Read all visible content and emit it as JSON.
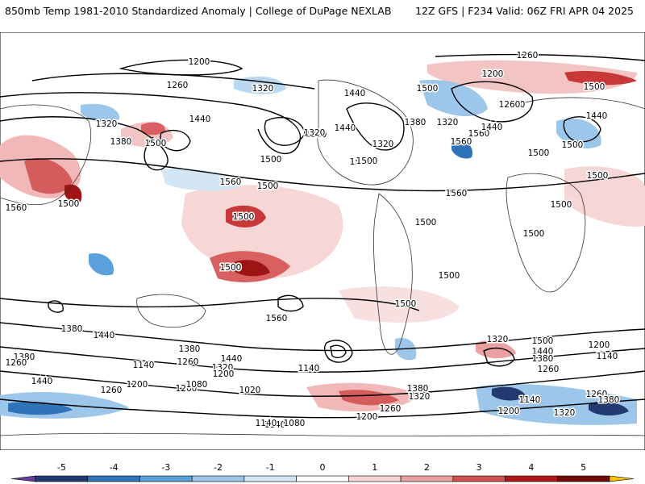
{
  "header": {
    "left_title": "850mb Temp 1981-2010 Standardized Anomaly | College of DuPage NEXLAB",
    "right_title": "12Z GFS | F234 Valid: 06Z FRI APR 04 2025"
  },
  "colorbar": {
    "ticks": [
      "-5",
      "-4",
      "-3",
      "-2",
      "-1",
      "0",
      "1",
      "2",
      "3",
      "4",
      "5"
    ],
    "colors": [
      "#6a3d9a",
      "#223a70",
      "#2f73b8",
      "#5aa0da",
      "#9cc6ea",
      "#d3e6f6",
      "#ffffff",
      "#f6d2d2",
      "#e8a0a0",
      "#d05050",
      "#b01818",
      "#6e0a0a",
      "#f4c400"
    ]
  },
  "contour_labels": [
    {
      "text": "1200"
    },
    {
      "text": "1260"
    },
    {
      "text": "1320"
    },
    {
      "text": "1440"
    },
    {
      "text": "1320"
    },
    {
      "text": "1380"
    },
    {
      "text": "1500"
    },
    {
      "text": "1560"
    },
    {
      "text": "1500"
    },
    {
      "text": "1500"
    },
    {
      "text": "1440"
    },
    {
      "text": "1320"
    },
    {
      "text": "1500"
    },
    {
      "text": "1560"
    },
    {
      "text": "1500"
    },
    {
      "text": "1440"
    },
    {
      "text": "1380"
    },
    {
      "text": "1500"
    },
    {
      "text": "1320"
    },
    {
      "text": "1560"
    },
    {
      "text": "1260"
    },
    {
      "text": "1260"
    },
    {
      "text": "1200"
    },
    {
      "text": "1500"
    },
    {
      "text": "1260"
    },
    {
      "text": "1440"
    },
    {
      "text": "1380"
    },
    {
      "text": "1320"
    },
    {
      "text": "1440"
    },
    {
      "text": "1560"
    },
    {
      "text": "1500"
    },
    {
      "text": "1500"
    },
    {
      "text": "1500"
    },
    {
      "text": "1500"
    },
    {
      "text": "1500"
    },
    {
      "text": "1500"
    },
    {
      "text": "1500"
    },
    {
      "text": "1500"
    },
    {
      "text": "1500"
    },
    {
      "text": "1560"
    },
    {
      "text": "1440"
    },
    {
      "text": "1380"
    },
    {
      "text": "1500"
    },
    {
      "text": "1560"
    },
    {
      "text": "1500"
    },
    {
      "text": "1380"
    },
    {
      "text": "1260"
    },
    {
      "text": "1440"
    },
    {
      "text": "1320"
    },
    {
      "text": "1200"
    },
    {
      "text": "1140"
    },
    {
      "text": "1260"
    },
    {
      "text": "1140"
    },
    {
      "text": "1080"
    },
    {
      "text": "1200"
    },
    {
      "text": "1260"
    },
    {
      "text": "1140"
    },
    {
      "text": "1020"
    },
    {
      "text": "1140"
    },
    {
      "text": "1080"
    },
    {
      "text": "1380"
    },
    {
      "text": "1320"
    },
    {
      "text": "1200"
    },
    {
      "text": "1260"
    },
    {
      "text": "1320"
    },
    {
      "text": "1500"
    },
    {
      "text": "1440"
    },
    {
      "text": "1380"
    },
    {
      "text": "1260"
    },
    {
      "text": "1200"
    },
    {
      "text": "1140"
    },
    {
      "text": "1260"
    },
    {
      "text": "1380"
    },
    {
      "text": "1140"
    },
    {
      "text": "1200"
    },
    {
      "text": "1320"
    },
    {
      "text": "1440"
    },
    {
      "text": "1380"
    },
    {
      "text": "1260"
    }
  ]
}
